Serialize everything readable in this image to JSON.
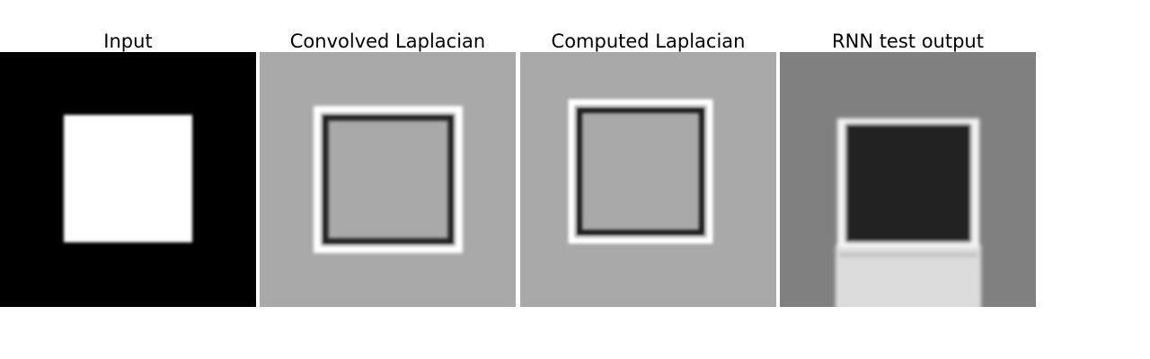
{
  "panels": [
    {
      "title": "Input"
    },
    {
      "title": "Convolved Laplacian"
    },
    {
      "title": "Computed Laplacian"
    },
    {
      "title": "RNN test output"
    }
  ],
  "colors": {
    "background": "#ffffff",
    "input_bg": "#000000",
    "input_square": "#ffffff",
    "laplacian_bg": "#a9a9a9",
    "rnn_bg": "#808080",
    "rnn_square": "#222222",
    "rnn_lower": "#dcdcdc"
  }
}
